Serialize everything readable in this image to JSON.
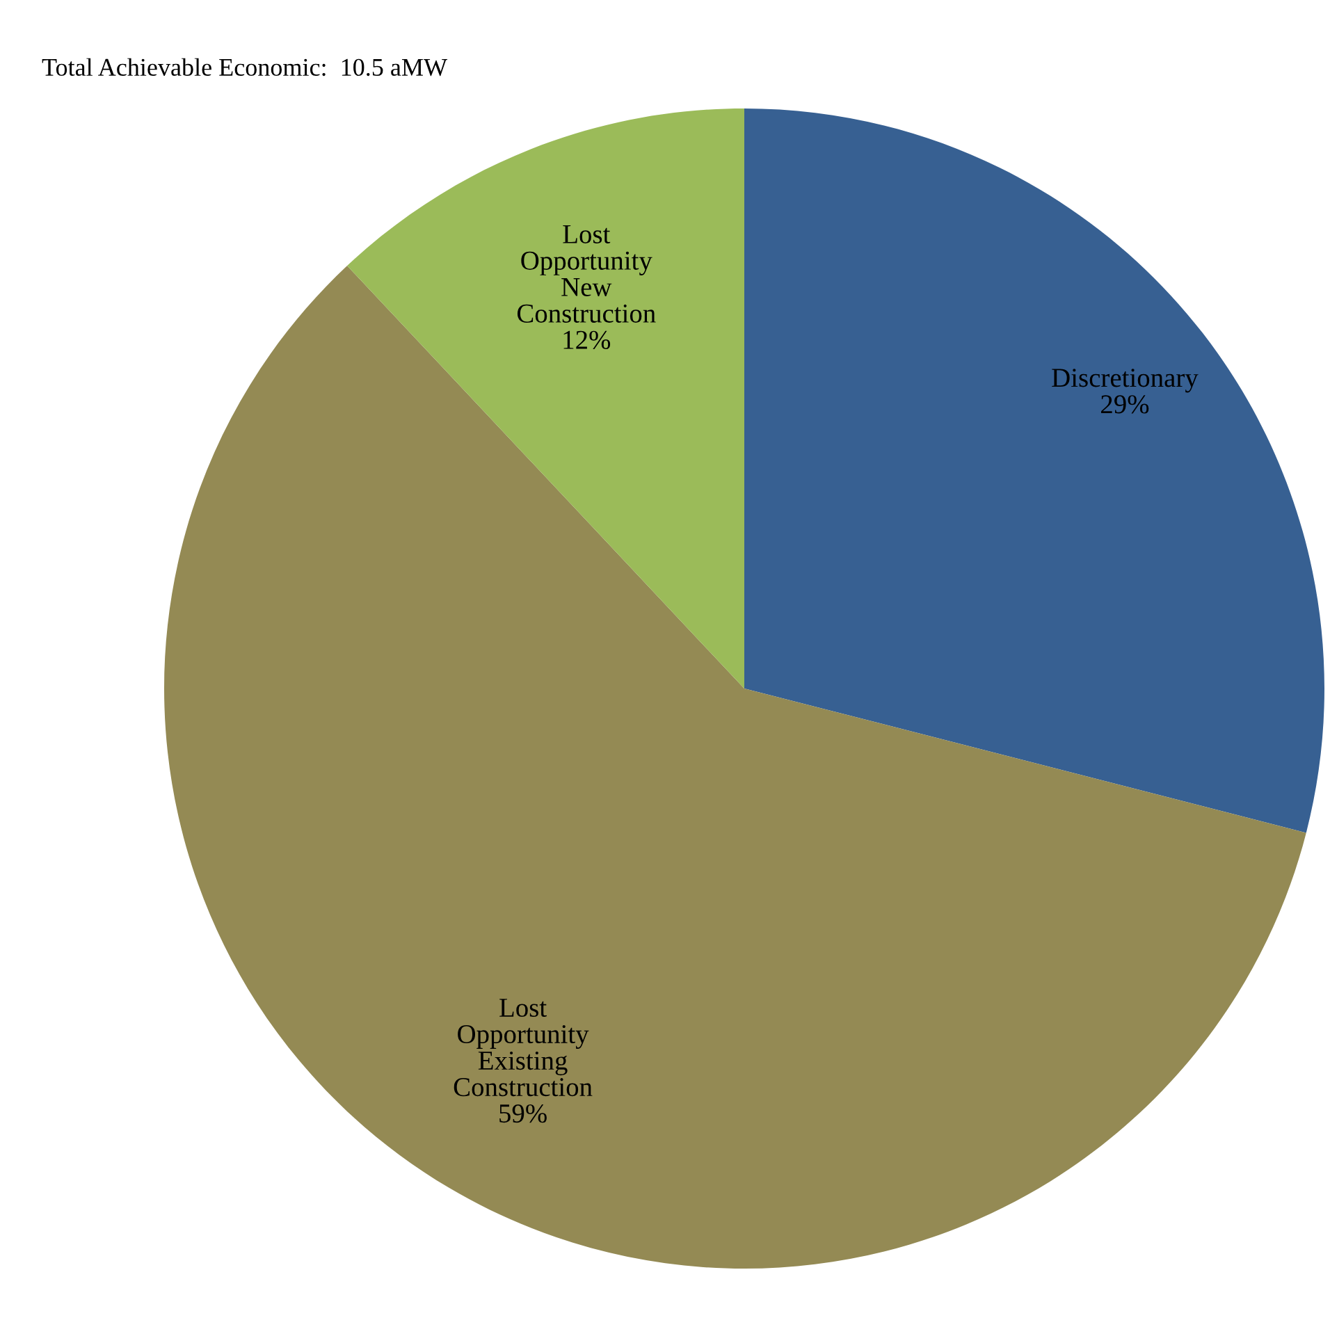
{
  "chart_data": {
    "type": "pie",
    "categories": [
      "Discretionary",
      "Lost\nOpportunity\nExisting\nConstruction",
      "Lost\nOpportunity\nNew\nConstruction"
    ],
    "values": [
      29,
      59,
      12
    ],
    "value_labels": [
      "29%",
      "59%",
      "12%"
    ],
    "colors": [
      "#376092",
      "#948a54",
      "#9bbb59"
    ],
    "annotations": [
      "Total Achievable Economic:  10.5 aMW"
    ],
    "legend": false
  }
}
